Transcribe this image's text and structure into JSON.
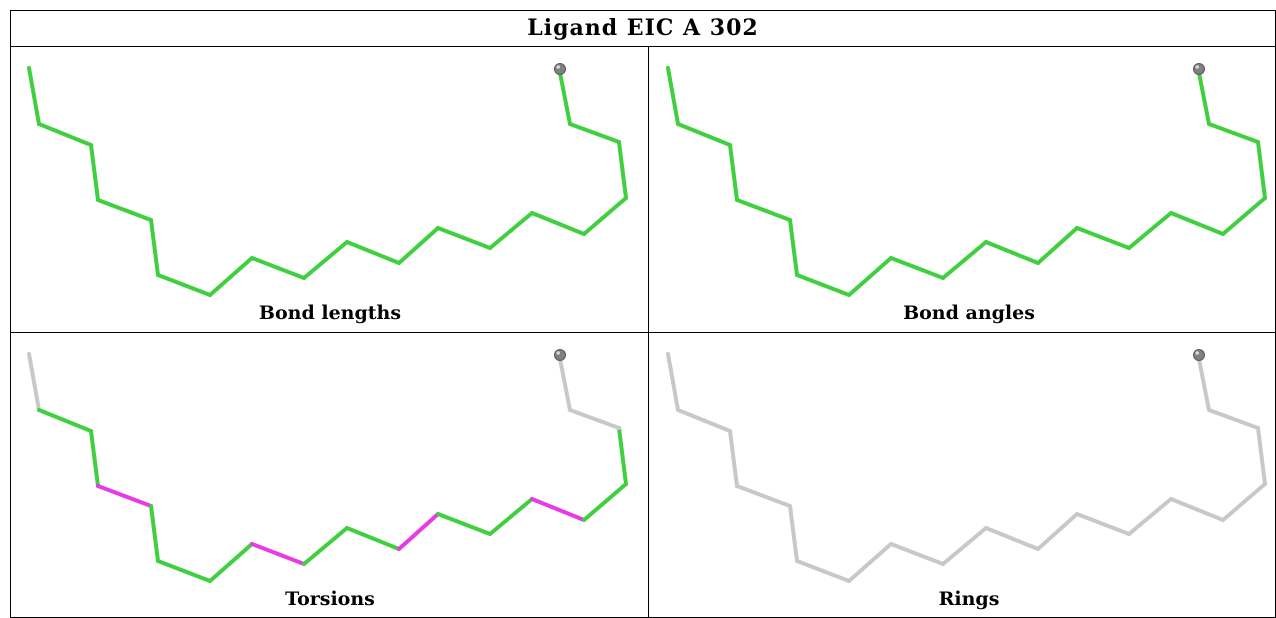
{
  "title": "Ligand EIC A 302",
  "colors": {
    "good": "#3fcf3f",
    "outlier": "#e63be6",
    "unchecked": "#c8c8c8",
    "atom": "#808080"
  },
  "panels": [
    {
      "caption": "Bond lengths",
      "bond_status": [
        "good",
        "good",
        "good",
        "good",
        "good",
        "good",
        "good",
        "good",
        "good",
        "good",
        "good",
        "good",
        "good",
        "good",
        "good",
        "good",
        "good",
        "good",
        "good",
        "unchecked",
        "outlier"
      ]
    },
    {
      "caption": "Bond angles",
      "bond_status": [
        "good",
        "good",
        "good",
        "good",
        "good",
        "good",
        "good",
        "good",
        "good",
        "good",
        "good",
        "good",
        "good",
        "good",
        "good",
        "good",
        "good",
        "good",
        "good",
        "outlier",
        "outlier"
      ]
    },
    {
      "caption": "Torsions",
      "bond_status": [
        "unchecked",
        "good",
        "good",
        "outlier",
        "good",
        "good",
        "good",
        "outlier",
        "good",
        "good",
        "outlier",
        "good",
        "good",
        "outlier",
        "good",
        "good",
        "unchecked",
        "unchecked",
        "unchecked",
        "good",
        "unchecked"
      ]
    },
    {
      "caption": "Rings",
      "bond_status": [
        "unchecked",
        "unchecked",
        "unchecked",
        "unchecked",
        "unchecked",
        "unchecked",
        "unchecked",
        "unchecked",
        "unchecked",
        "unchecked",
        "unchecked",
        "unchecked",
        "unchecked",
        "unchecked",
        "unchecked",
        "unchecked",
        "unchecked",
        "unchecked",
        "unchecked",
        "unchecked",
        "unchecked"
      ]
    }
  ]
}
